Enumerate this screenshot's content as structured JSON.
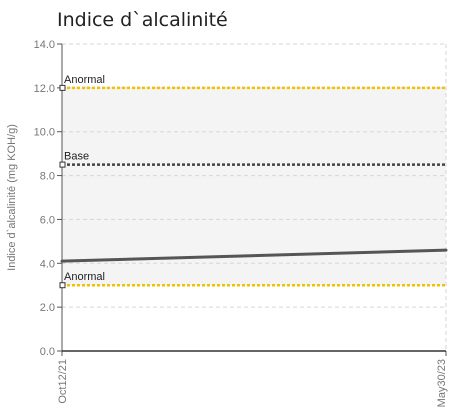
{
  "chart_data": {
    "type": "line",
    "title": "Indice d`alcalinité",
    "ylabel": "Indice d`alcalinité (mg KOH/g)",
    "xlabel": "",
    "x_ticks": [
      "Oct12/21",
      "May30/23"
    ],
    "ylim": [
      0,
      14
    ],
    "y_ticks": [
      "0.0",
      "2.0",
      "4.0",
      "6.0",
      "8.0",
      "10.0",
      "12.0",
      "14.0"
    ],
    "grid": true,
    "series": [
      {
        "color": "#555555",
        "x": [
          "Oct12/21",
          "May30/23"
        ],
        "values": [
          4.1,
          4.6
        ]
      }
    ],
    "reference_lines": [
      {
        "label": "Anormal",
        "value": 12.0,
        "color": "#f2c200"
      },
      {
        "label": "Base",
        "value": 8.5,
        "color": "#444444"
      },
      {
        "label": "Anormal",
        "value": 3.0,
        "color": "#f2c200"
      }
    ],
    "bands": [
      {
        "from": 8.5,
        "to": 12.0,
        "color": "#f4f4f4"
      },
      {
        "from": 3.0,
        "to": 8.5,
        "color": "#f4f4f4"
      }
    ]
  }
}
